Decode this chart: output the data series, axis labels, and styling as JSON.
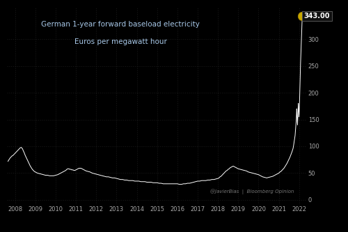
{
  "title_line1": "German 1-year forward baseload electricity",
  "title_line2": "Euros per megawatt hour",
  "attribution": "@JavierBias  |  Bloomberg Opinion",
  "peak_label": "343.00",
  "peak_value": 343.0,
  "background_color": "#000000",
  "line_color": "#ffffff",
  "title_color": "#a8c8e8",
  "attribution_color": "#777777",
  "tick_color": "#aaaaaa",
  "xlim": [
    2007.6,
    2022.35
  ],
  "ylim": [
    -8,
    360
  ],
  "yticks": [
    0,
    50,
    100,
    150,
    200,
    250,
    300
  ],
  "xtick_positions": [
    2008,
    2009,
    2010,
    2011,
    2012,
    2013,
    2014,
    2015,
    2016,
    2017,
    2018,
    2019,
    2020,
    2021,
    2022
  ],
  "xtick_labels": [
    "2008",
    "2009",
    "2010",
    "2011",
    "2012",
    "2013",
    "2014",
    "2015",
    "2016",
    "2017",
    "2018",
    "2019",
    "2020",
    "2021",
    "2022"
  ],
  "series": [
    [
      2007.65,
      72
    ],
    [
      2007.7,
      75
    ],
    [
      2007.75,
      78
    ],
    [
      2007.8,
      80
    ],
    [
      2007.85,
      82
    ],
    [
      2007.9,
      83
    ],
    [
      2007.95,
      85
    ],
    [
      2008.0,
      87
    ],
    [
      2008.05,
      89
    ],
    [
      2008.1,
      91
    ],
    [
      2008.15,
      93
    ],
    [
      2008.2,
      95
    ],
    [
      2008.25,
      97
    ],
    [
      2008.3,
      98
    ],
    [
      2008.33,
      97
    ],
    [
      2008.37,
      95
    ],
    [
      2008.4,
      92
    ],
    [
      2008.45,
      88
    ],
    [
      2008.5,
      83
    ],
    [
      2008.55,
      79
    ],
    [
      2008.6,
      75
    ],
    [
      2008.65,
      71
    ],
    [
      2008.7,
      67
    ],
    [
      2008.75,
      63
    ],
    [
      2008.8,
      60
    ],
    [
      2008.85,
      57
    ],
    [
      2008.9,
      55
    ],
    [
      2008.95,
      53
    ],
    [
      2009.0,
      52
    ],
    [
      2009.05,
      51
    ],
    [
      2009.1,
      50
    ],
    [
      2009.2,
      49
    ],
    [
      2009.3,
      48
    ],
    [
      2009.4,
      47
    ],
    [
      2009.5,
      46
    ],
    [
      2009.6,
      46
    ],
    [
      2009.7,
      45
    ],
    [
      2009.8,
      45
    ],
    [
      2009.9,
      45
    ],
    [
      2010.0,
      46
    ],
    [
      2010.1,
      47
    ],
    [
      2010.2,
      49
    ],
    [
      2010.3,
      51
    ],
    [
      2010.4,
      53
    ],
    [
      2010.5,
      55
    ],
    [
      2010.55,
      57
    ],
    [
      2010.6,
      58
    ],
    [
      2010.65,
      58
    ],
    [
      2010.7,
      57
    ],
    [
      2010.75,
      57
    ],
    [
      2010.8,
      56
    ],
    [
      2010.85,
      56
    ],
    [
      2010.9,
      55
    ],
    [
      2010.95,
      55
    ],
    [
      2011.0,
      56
    ],
    [
      2011.05,
      57
    ],
    [
      2011.1,
      58
    ],
    [
      2011.15,
      59
    ],
    [
      2011.2,
      59
    ],
    [
      2011.25,
      59
    ],
    [
      2011.3,
      58
    ],
    [
      2011.35,
      57
    ],
    [
      2011.4,
      56
    ],
    [
      2011.45,
      55
    ],
    [
      2011.5,
      54
    ],
    [
      2011.6,
      53
    ],
    [
      2011.7,
      52
    ],
    [
      2011.8,
      50
    ],
    [
      2011.9,
      49
    ],
    [
      2012.0,
      48
    ],
    [
      2012.1,
      47
    ],
    [
      2012.2,
      46
    ],
    [
      2012.3,
      45
    ],
    [
      2012.4,
      44
    ],
    [
      2012.5,
      43
    ],
    [
      2012.6,
      43
    ],
    [
      2012.7,
      42
    ],
    [
      2012.8,
      41
    ],
    [
      2012.9,
      41
    ],
    [
      2013.0,
      40
    ],
    [
      2013.1,
      39
    ],
    [
      2013.2,
      38
    ],
    [
      2013.3,
      38
    ],
    [
      2013.4,
      37
    ],
    [
      2013.5,
      37
    ],
    [
      2013.6,
      36
    ],
    [
      2013.7,
      36
    ],
    [
      2013.8,
      36
    ],
    [
      2013.9,
      35
    ],
    [
      2014.0,
      35
    ],
    [
      2014.1,
      35
    ],
    [
      2014.2,
      34
    ],
    [
      2014.3,
      34
    ],
    [
      2014.4,
      34
    ],
    [
      2014.5,
      33
    ],
    [
      2014.6,
      33
    ],
    [
      2014.7,
      33
    ],
    [
      2014.8,
      32
    ],
    [
      2014.9,
      32
    ],
    [
      2015.0,
      32
    ],
    [
      2015.1,
      31
    ],
    [
      2015.2,
      31
    ],
    [
      2015.3,
      30
    ],
    [
      2015.4,
      30
    ],
    [
      2015.5,
      30
    ],
    [
      2015.6,
      30
    ],
    [
      2015.7,
      30
    ],
    [
      2015.8,
      30
    ],
    [
      2015.9,
      30
    ],
    [
      2016.0,
      30
    ],
    [
      2016.1,
      29
    ],
    [
      2016.2,
      29
    ],
    [
      2016.3,
      30
    ],
    [
      2016.4,
      30
    ],
    [
      2016.5,
      31
    ],
    [
      2016.6,
      31
    ],
    [
      2016.7,
      32
    ],
    [
      2016.8,
      33
    ],
    [
      2016.9,
      34
    ],
    [
      2017.0,
      35
    ],
    [
      2017.1,
      35
    ],
    [
      2017.2,
      36
    ],
    [
      2017.3,
      36
    ],
    [
      2017.4,
      36
    ],
    [
      2017.5,
      37
    ],
    [
      2017.6,
      37
    ],
    [
      2017.7,
      38
    ],
    [
      2017.8,
      38
    ],
    [
      2017.9,
      39
    ],
    [
      2018.0,
      40
    ],
    [
      2018.05,
      41
    ],
    [
      2018.1,
      43
    ],
    [
      2018.15,
      44
    ],
    [
      2018.2,
      46
    ],
    [
      2018.25,
      48
    ],
    [
      2018.3,
      50
    ],
    [
      2018.35,
      52
    ],
    [
      2018.4,
      54
    ],
    [
      2018.45,
      55
    ],
    [
      2018.5,
      57
    ],
    [
      2018.55,
      58
    ],
    [
      2018.6,
      60
    ],
    [
      2018.65,
      61
    ],
    [
      2018.7,
      62
    ],
    [
      2018.75,
      63
    ],
    [
      2018.8,
      62
    ],
    [
      2018.85,
      61
    ],
    [
      2018.9,
      60
    ],
    [
      2018.95,
      59
    ],
    [
      2019.0,
      58
    ],
    [
      2019.1,
      57
    ],
    [
      2019.2,
      56
    ],
    [
      2019.3,
      55
    ],
    [
      2019.4,
      54
    ],
    [
      2019.5,
      52
    ],
    [
      2019.6,
      51
    ],
    [
      2019.7,
      50
    ],
    [
      2019.8,
      49
    ],
    [
      2019.9,
      48
    ],
    [
      2020.0,
      47
    ],
    [
      2020.1,
      45
    ],
    [
      2020.2,
      43
    ],
    [
      2020.3,
      42
    ],
    [
      2020.4,
      41
    ],
    [
      2020.5,
      42
    ],
    [
      2020.6,
      43
    ],
    [
      2020.7,
      44
    ],
    [
      2020.8,
      46
    ],
    [
      2020.9,
      48
    ],
    [
      2021.0,
      50
    ],
    [
      2021.05,
      52
    ],
    [
      2021.1,
      53
    ],
    [
      2021.15,
      55
    ],
    [
      2021.2,
      57
    ],
    [
      2021.25,
      59
    ],
    [
      2021.3,
      62
    ],
    [
      2021.35,
      65
    ],
    [
      2021.4,
      68
    ],
    [
      2021.45,
      72
    ],
    [
      2021.5,
      76
    ],
    [
      2021.55,
      80
    ],
    [
      2021.6,
      85
    ],
    [
      2021.65,
      90
    ],
    [
      2021.7,
      96
    ],
    [
      2021.72,
      100
    ],
    [
      2021.74,
      105
    ],
    [
      2021.76,
      110
    ],
    [
      2021.78,
      115
    ],
    [
      2021.8,
      120
    ],
    [
      2021.82,
      130
    ],
    [
      2021.84,
      140
    ],
    [
      2021.86,
      150
    ],
    [
      2021.87,
      160
    ],
    [
      2021.88,
      170
    ],
    [
      2021.89,
      165
    ],
    [
      2021.9,
      155
    ],
    [
      2021.91,
      145
    ],
    [
      2021.92,
      140
    ],
    [
      2021.93,
      150
    ],
    [
      2021.94,
      160
    ],
    [
      2021.95,
      170
    ],
    [
      2021.96,
      180
    ],
    [
      2021.97,
      175
    ],
    [
      2021.98,
      165
    ],
    [
      2021.99,
      155
    ],
    [
      2022.0,
      160
    ],
    [
      2022.01,
      170
    ],
    [
      2022.02,
      185
    ],
    [
      2022.03,
      200
    ],
    [
      2022.04,
      215
    ],
    [
      2022.05,
      230
    ],
    [
      2022.06,
      245
    ],
    [
      2022.07,
      255
    ],
    [
      2022.08,
      265
    ],
    [
      2022.09,
      275
    ],
    [
      2022.1,
      285
    ],
    [
      2022.11,
      295
    ],
    [
      2022.12,
      305
    ],
    [
      2022.13,
      318
    ],
    [
      2022.14,
      330
    ],
    [
      2022.15,
      340
    ],
    [
      2022.16,
      343
    ],
    [
      2022.17,
      343
    ]
  ]
}
